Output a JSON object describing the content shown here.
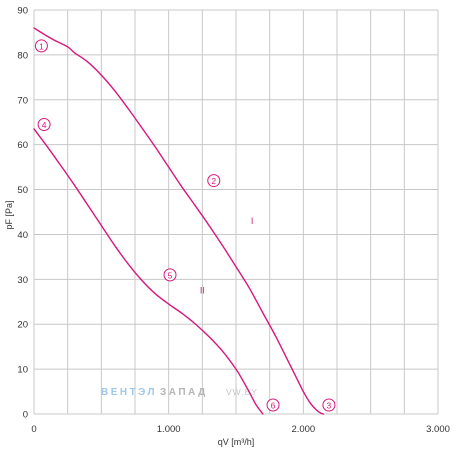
{
  "chart_data": {
    "type": "line",
    "ylabel": "pF [Pa]",
    "xlabel": "qV [m³/h]",
    "xlim": [
      0,
      3000
    ],
    "ylim": [
      0,
      90
    ],
    "x_ticks": [
      0,
      1000,
      2000,
      3000
    ],
    "x_tick_labels": [
      "0",
      "1.000",
      "2.000",
      "3.000"
    ],
    "y_ticks": [
      0,
      10,
      20,
      30,
      40,
      50,
      60,
      70,
      80,
      90
    ],
    "y_tick_labels": [
      "0",
      "10",
      "20",
      "30",
      "40",
      "50",
      "60",
      "70",
      "80",
      "90"
    ],
    "grid": true,
    "series": [
      {
        "x": [
          0,
          80,
          150,
          250,
          300,
          400,
          500,
          600,
          700,
          800,
          900,
          1000,
          1100,
          1200,
          1300,
          1400,
          1500,
          1600,
          1700,
          1800,
          1900,
          1950,
          2000,
          2050,
          2100,
          2130,
          2150
        ],
        "y": [
          86,
          84.5,
          83.3,
          81.8,
          80.5,
          78.4,
          75.5,
          72,
          68,
          63.8,
          59.5,
          55,
          50.5,
          46.3,
          42,
          37.5,
          32.8,
          28,
          22.5,
          17,
          11,
          8,
          5,
          2.5,
          0.8,
          0.2,
          0
        ]
      },
      {
        "x": [
          0,
          100,
          200,
          300,
          400,
          500,
          600,
          700,
          800,
          900,
          1000,
          1100,
          1200,
          1300,
          1400,
          1500,
          1550,
          1600,
          1650,
          1700
        ],
        "y": [
          63.5,
          59.5,
          55.3,
          51,
          46.5,
          42,
          37.5,
          33.4,
          29.8,
          26.8,
          24.5,
          22.4,
          20,
          17.2,
          14,
          10,
          7.5,
          4.8,
          2,
          0
        ]
      }
    ],
    "point_markers": [
      {
        "label": "1",
        "x": 55,
        "y": 82
      },
      {
        "label": "2",
        "x": 1335,
        "y": 52
      },
      {
        "label": "3",
        "x": 2190,
        "y": 2
      },
      {
        "label": "4",
        "x": 75,
        "y": 64.5
      },
      {
        "label": "5",
        "x": 1010,
        "y": 31
      },
      {
        "label": "6",
        "x": 1775,
        "y": 2
      }
    ],
    "region_labels": [
      {
        "label": "I",
        "x": 1620,
        "y": 43
      },
      {
        "label": "II",
        "x": 1250,
        "y": 27.5
      }
    ]
  },
  "colors": {
    "curve": "#d6177f",
    "marker": "#d6177f",
    "grid": "#c8c8c8",
    "text": "#333333"
  },
  "watermark": {
    "part1": "ВЕНТЭЛ",
    "part2": "ЗАПАД",
    "part3": "VW.BY"
  }
}
